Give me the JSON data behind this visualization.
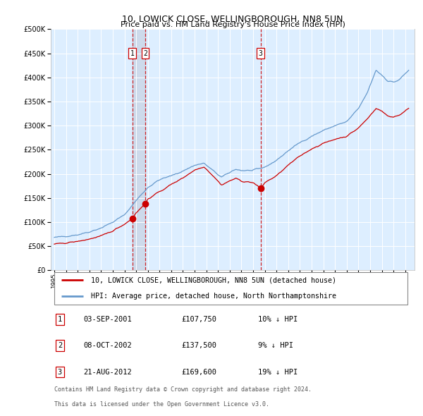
{
  "title": "10, LOWICK CLOSE, WELLINGBOROUGH, NN8 5UN",
  "subtitle": "Price paid vs. HM Land Registry's House Price Index (HPI)",
  "legend_line1": "10, LOWICK CLOSE, WELLINGBOROUGH, NN8 5UN (detached house)",
  "legend_line2": "HPI: Average price, detached house, North Northamptonshire",
  "footer1": "Contains HM Land Registry data © Crown copyright and database right 2024.",
  "footer2": "This data is licensed under the Open Government Licence v3.0.",
  "transactions": [
    {
      "num": 1,
      "date": "03-SEP-2001",
      "price": 107750,
      "hpi_diff": "10% ↓ HPI",
      "x_year": 2001.67
    },
    {
      "num": 2,
      "date": "08-OCT-2002",
      "price": 137500,
      "hpi_diff": "9% ↓ HPI",
      "x_year": 2002.77
    },
    {
      "num": 3,
      "date": "21-AUG-2012",
      "price": 169600,
      "hpi_diff": "19% ↓ HPI",
      "x_year": 2012.64
    }
  ],
  "hpi_color": "#6699cc",
  "price_color": "#cc0000",
  "plot_bg": "#ddeeff",
  "grid_color": "#ffffff",
  "vline_color": "#cc0000",
  "span_color": "#cddaeb",
  "ylim": [
    0,
    500000
  ],
  "yticks": [
    0,
    50000,
    100000,
    150000,
    200000,
    250000,
    300000,
    350000,
    400000,
    450000,
    500000
  ],
  "xlim_start": 1994.7,
  "xlim_end": 2025.8,
  "hpi_anchors": [
    [
      1995.0,
      68000
    ],
    [
      1996.0,
      71000
    ],
    [
      1997.0,
      74000
    ],
    [
      1998.0,
      80000
    ],
    [
      1999.0,
      88000
    ],
    [
      2000.0,
      100000
    ],
    [
      2001.0,
      115000
    ],
    [
      2002.0,
      145000
    ],
    [
      2003.0,
      172000
    ],
    [
      2004.0,
      188000
    ],
    [
      2005.0,
      196000
    ],
    [
      2006.0,
      206000
    ],
    [
      2007.0,
      218000
    ],
    [
      2007.8,
      222000
    ],
    [
      2008.5,
      208000
    ],
    [
      2009.3,
      193000
    ],
    [
      2009.8,
      200000
    ],
    [
      2010.5,
      210000
    ],
    [
      2011.0,
      207000
    ],
    [
      2012.0,
      207000
    ],
    [
      2013.0,
      214000
    ],
    [
      2014.0,
      228000
    ],
    [
      2015.0,
      248000
    ],
    [
      2016.0,
      265000
    ],
    [
      2017.0,
      278000
    ],
    [
      2018.0,
      290000
    ],
    [
      2019.0,
      300000
    ],
    [
      2020.0,
      308000
    ],
    [
      2021.0,
      335000
    ],
    [
      2021.8,
      370000
    ],
    [
      2022.5,
      415000
    ],
    [
      2023.0,
      405000
    ],
    [
      2023.5,
      393000
    ],
    [
      2024.0,
      390000
    ],
    [
      2024.5,
      395000
    ],
    [
      2025.3,
      415000
    ]
  ],
  "pp_anchors": [
    [
      1995.0,
      54000
    ],
    [
      1996.0,
      57000
    ],
    [
      1997.0,
      60000
    ],
    [
      1998.0,
      65000
    ],
    [
      1999.0,
      71000
    ],
    [
      2000.0,
      82000
    ],
    [
      2001.0,
      96000
    ],
    [
      2001.67,
      107750
    ],
    [
      2002.0,
      120000
    ],
    [
      2002.77,
      137500
    ],
    [
      2003.0,
      148000
    ],
    [
      2004.0,
      163000
    ],
    [
      2005.0,
      178000
    ],
    [
      2006.0,
      192000
    ],
    [
      2007.0,
      208000
    ],
    [
      2007.8,
      215000
    ],
    [
      2008.5,
      198000
    ],
    [
      2009.3,
      177000
    ],
    [
      2009.8,
      183000
    ],
    [
      2010.5,
      191000
    ],
    [
      2011.0,
      185000
    ],
    [
      2012.0,
      182000
    ],
    [
      2012.64,
      169600
    ],
    [
      2013.0,
      182000
    ],
    [
      2014.0,
      196000
    ],
    [
      2015.0,
      218000
    ],
    [
      2016.0,
      237000
    ],
    [
      2017.0,
      252000
    ],
    [
      2018.0,
      263000
    ],
    [
      2019.0,
      272000
    ],
    [
      2020.0,
      278000
    ],
    [
      2021.0,
      295000
    ],
    [
      2021.8,
      315000
    ],
    [
      2022.5,
      336000
    ],
    [
      2023.0,
      330000
    ],
    [
      2023.5,
      320000
    ],
    [
      2024.0,
      318000
    ],
    [
      2024.5,
      322000
    ],
    [
      2025.3,
      335000
    ]
  ]
}
